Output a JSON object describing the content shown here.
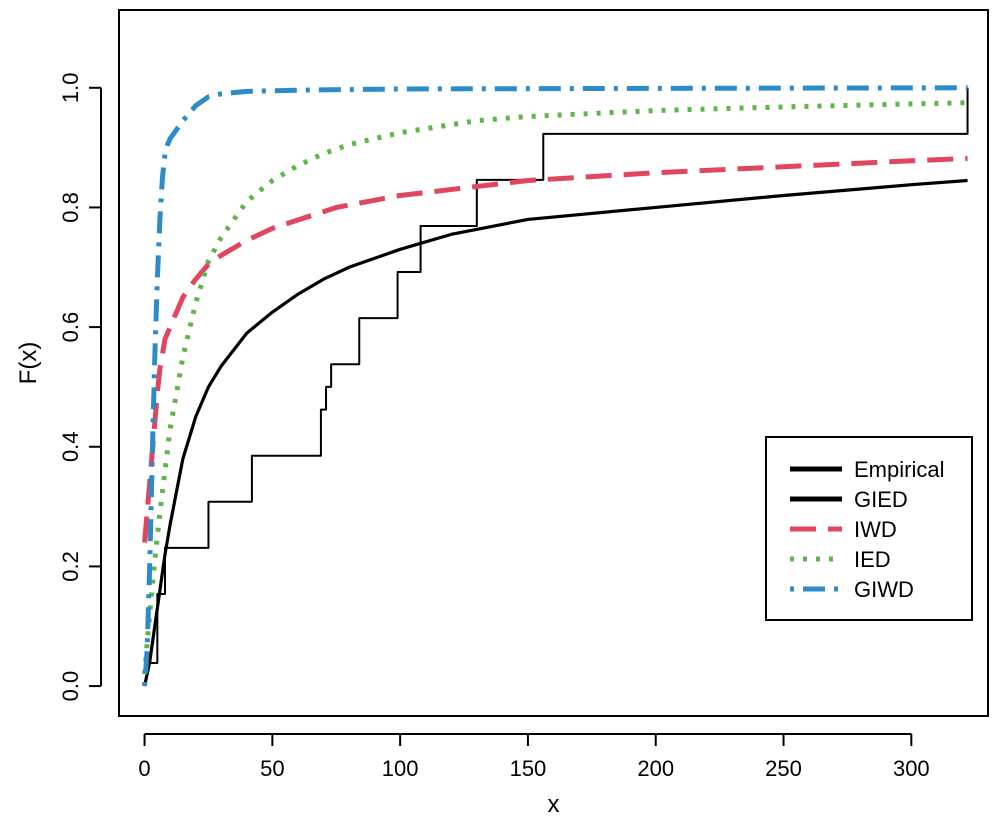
{
  "chart_data": {
    "type": "line",
    "title": "",
    "xlabel": "x",
    "ylabel": "F(x)",
    "xlim": [
      -10,
      330
    ],
    "ylim": [
      -0.05,
      1.13
    ],
    "x_ticks": [
      0,
      50,
      100,
      150,
      200,
      250,
      300
    ],
    "y_ticks": [
      0.0,
      0.2,
      0.4,
      0.6,
      0.8,
      1.0
    ],
    "x_tick_labels": [
      "0",
      "50",
      "100",
      "150",
      "200",
      "250",
      "300"
    ],
    "y_tick_labels": [
      "0.0",
      "0.2",
      "0.4",
      "0.6",
      "0.8",
      "1.0"
    ],
    "legend_position": "bottom-right",
    "series": [
      {
        "name": "Empirical",
        "style": "step",
        "color": "#000000",
        "x": [
          1,
          5,
          8,
          9,
          25,
          42,
          69,
          71,
          73,
          84,
          99,
          108,
          130,
          156,
          322
        ],
        "y": [
          0.0385,
          0.154,
          0.231,
          0.231,
          0.308,
          0.385,
          0.462,
          0.5,
          0.538,
          0.615,
          0.692,
          0.769,
          0.846,
          0.923,
          1.0
        ]
      },
      {
        "name": "GIED",
        "style": "solid",
        "color": "#000000",
        "x": [
          0,
          2,
          4,
          6,
          8,
          10,
          15,
          20,
          25,
          30,
          40,
          50,
          60,
          70,
          80,
          100,
          120,
          150,
          200,
          250,
          300,
          322
        ],
        "y": [
          0.0,
          0.04,
          0.1,
          0.16,
          0.22,
          0.27,
          0.38,
          0.45,
          0.5,
          0.535,
          0.59,
          0.625,
          0.655,
          0.68,
          0.7,
          0.73,
          0.755,
          0.78,
          0.8,
          0.82,
          0.838,
          0.845
        ]
      },
      {
        "name": "IWD",
        "style": "dashed",
        "color": "#E0465E",
        "x": [
          0,
          1,
          2,
          3,
          4,
          5,
          6,
          8,
          10,
          15,
          20,
          25,
          30,
          40,
          50,
          75,
          100,
          150,
          200,
          250,
          300,
          322
        ],
        "y": [
          0.24,
          0.29,
          0.34,
          0.39,
          0.44,
          0.49,
          0.53,
          0.58,
          0.6,
          0.65,
          0.68,
          0.705,
          0.72,
          0.745,
          0.765,
          0.8,
          0.82,
          0.845,
          0.858,
          0.868,
          0.878,
          0.882
        ]
      },
      {
        "name": "IED",
        "style": "dotted",
        "color": "#5EB54B",
        "x": [
          0,
          2,
          4,
          6,
          8,
          10,
          15,
          20,
          25,
          30,
          40,
          50,
          60,
          70,
          80,
          100,
          130,
          150,
          200,
          250,
          300,
          322
        ],
        "y": [
          0.02,
          0.12,
          0.21,
          0.29,
          0.36,
          0.43,
          0.55,
          0.64,
          0.71,
          0.75,
          0.81,
          0.845,
          0.87,
          0.89,
          0.905,
          0.925,
          0.945,
          0.952,
          0.962,
          0.968,
          0.973,
          0.975
        ]
      },
      {
        "name": "GIWD",
        "style": "dotdash",
        "color": "#2E8BC9",
        "x": [
          0,
          1,
          2,
          3,
          4,
          5,
          6,
          7,
          8,
          9,
          10,
          15,
          20,
          25,
          30,
          40,
          60,
          100,
          200,
          322
        ],
        "y": [
          0.0,
          0.06,
          0.2,
          0.38,
          0.55,
          0.68,
          0.78,
          0.85,
          0.89,
          0.905,
          0.915,
          0.945,
          0.97,
          0.985,
          0.99,
          0.994,
          0.996,
          0.998,
          0.999,
          1.0
        ]
      }
    ]
  }
}
